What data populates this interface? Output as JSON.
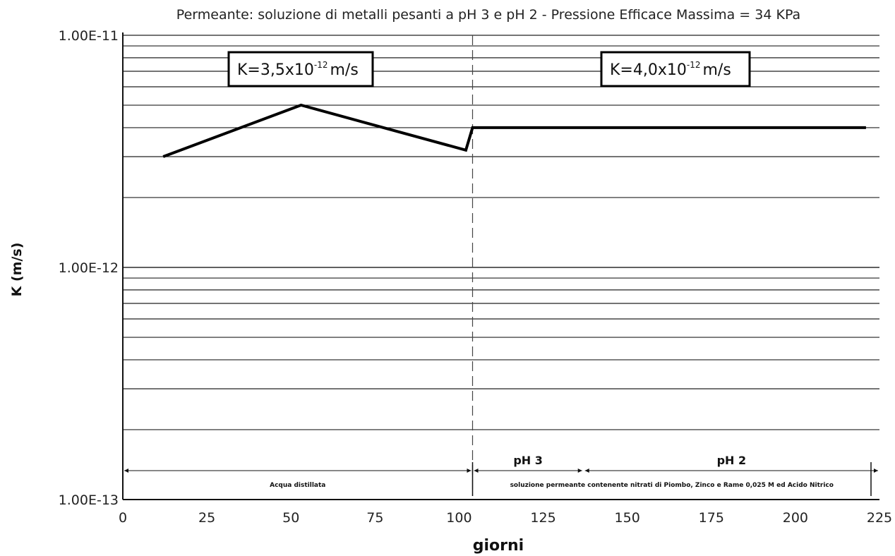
{
  "chart_data": {
    "type": "line",
    "title": "Permeante: soluzione di metalli pesanti a pH 3 e pH 2  -  Pressione Efficace Massima = 34 KPa",
    "xlabel": "giorni",
    "ylabel": "K (m/s)",
    "xlim": [
      0,
      225
    ],
    "ylim": [
      1e-13,
      1e-11
    ],
    "yscale": "log",
    "x_ticks": [
      0,
      25,
      50,
      75,
      100,
      125,
      150,
      175,
      200,
      225
    ],
    "y_ticks": [
      {
        "value": 1e-11,
        "label": "1.00E-11"
      },
      {
        "value": 1e-12,
        "label": "1.00E-12"
      },
      {
        "value": 1e-13,
        "label": "1.00E-13"
      }
    ],
    "grid": "horizontal minor log gridlines",
    "series": [
      {
        "values": [
          {
            "x": 12,
            "y": 3e-12
          },
          {
            "x": 53,
            "y": 5e-12
          },
          {
            "x": 102,
            "y": 3.2e-12
          },
          {
            "x": 104,
            "y": 4e-12
          },
          {
            "x": 221,
            "y": 4e-12
          }
        ]
      }
    ],
    "divider_x": 104,
    "annotations": [
      {
        "prefix": "K=3,5x10",
        "exp": "-12",
        "suffix": "m/s"
      },
      {
        "prefix": "K=4,0x10",
        "exp": "-12",
        "suffix": "m/s"
      }
    ],
    "phases": [
      {
        "label": "",
        "caption": "Acqua distillata",
        "x_start": 0,
        "x_end": 104
      },
      {
        "label": "pH 3",
        "caption": "",
        "x_start": 104,
        "x_end": 137
      },
      {
        "label": "pH 2",
        "caption": "",
        "x_start": 137,
        "x_end": 225
      }
    ],
    "phase_caption_shared": "soluzione permeante contenente nitrati di Piombo, Zinco e Rame  0,025 M ed Acido Nitrico"
  }
}
